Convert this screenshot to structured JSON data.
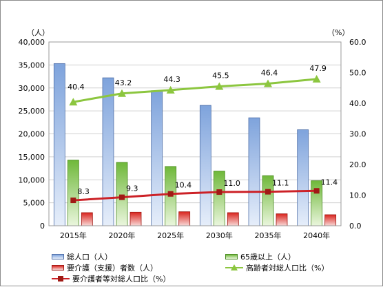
{
  "chart_data": {
    "type": "bar",
    "categories": [
      "2015年",
      "2020年",
      "2025年",
      "2030年",
      "2035年",
      "2040年"
    ],
    "y_left_unit": "（人）",
    "y_right_unit": "（%）",
    "y_left_ticks": [
      "0",
      "5,000",
      "10,000",
      "15,000",
      "20,000",
      "25,000",
      "30,000",
      "35,000",
      "40,000"
    ],
    "y_right_ticks": [
      "0.0",
      "10.0",
      "20.0",
      "30.0",
      "40.0",
      "50.0",
      "60.0"
    ],
    "ylim_left": [
      0,
      40000
    ],
    "ylim_right": [
      0,
      60
    ],
    "grid": true,
    "legend_position": "bottom",
    "series": [
      {
        "name": "総人口（人）",
        "type": "bar",
        "axis": "left",
        "color": "#9fbbe6",
        "values": [
          35300,
          32200,
          29400,
          26200,
          23500,
          20900
        ],
        "labels": [
          "",
          "",
          "",
          "",
          "",
          ""
        ]
      },
      {
        "name": "65歳以上（人）",
        "type": "bar",
        "axis": "left",
        "color": "#8fcf5e",
        "values": [
          14300,
          13800,
          12900,
          11900,
          10900,
          9800
        ],
        "labels": [
          "",
          "",
          "",
          "",
          "",
          ""
        ]
      },
      {
        "name": "要介護（支援）者数（人）",
        "type": "bar",
        "axis": "left",
        "color": "#e0352f",
        "values": [
          2850,
          2950,
          3050,
          2850,
          2600,
          2400
        ],
        "labels": [
          "",
          "",
          "",
          "",
          "",
          ""
        ]
      },
      {
        "name": "高齢者対総人口比（%）",
        "type": "line",
        "axis": "right",
        "color": "#8cc63f",
        "values": [
          40.4,
          43.2,
          44.3,
          45.5,
          46.4,
          47.9
        ],
        "labels": [
          "40.4",
          "43.2",
          "44.3",
          "45.5",
          "46.4",
          "47.9"
        ]
      },
      {
        "name": "要介護者等対総人口比（%）",
        "type": "line",
        "axis": "right",
        "color": "#cc2127",
        "values": [
          8.3,
          9.3,
          10.4,
          11.0,
          11.1,
          11.4
        ],
        "labels": [
          "8.3",
          "9.3",
          "10.4",
          "11.0",
          "11.1",
          "11.4"
        ]
      }
    ]
  }
}
